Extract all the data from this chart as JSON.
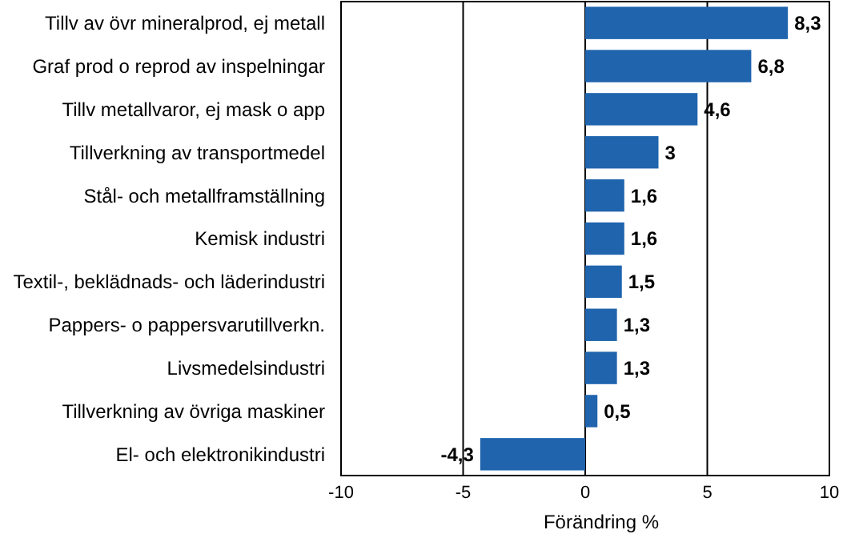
{
  "chart_data": {
    "type": "bar",
    "orientation": "horizontal",
    "xlabel": "Förändring %",
    "categories": [
      "Tillv av övr mineralprod, ej metall",
      "Graf prod o reprod av inspelningar",
      "Tillv metallvaror, ej mask o app",
      "Tillverkning av transportmedel",
      "Stål- och metallframställning",
      "Kemisk industri",
      "Textil-, beklädnads- och läderindustri",
      "Pappers- o pappersvarutillverkn.",
      "Livsmedelsindustri",
      "Tillverkning av övriga maskiner",
      "El- och elektronikindustri"
    ],
    "values": [
      8.3,
      6.8,
      4.6,
      3,
      1.6,
      1.6,
      1.5,
      1.3,
      1.3,
      0.5,
      -4.3
    ],
    "value_labels": [
      "8,3",
      "6,8",
      "4,6",
      "3",
      "1,6",
      "1,6",
      "1,5",
      "1,3",
      "1,3",
      "0,5",
      "-4,3"
    ],
    "color": "#1f64ad",
    "xlim": [
      -10,
      10
    ],
    "xticks": [
      -10,
      -5,
      0,
      5,
      10
    ],
    "grid": "x"
  }
}
